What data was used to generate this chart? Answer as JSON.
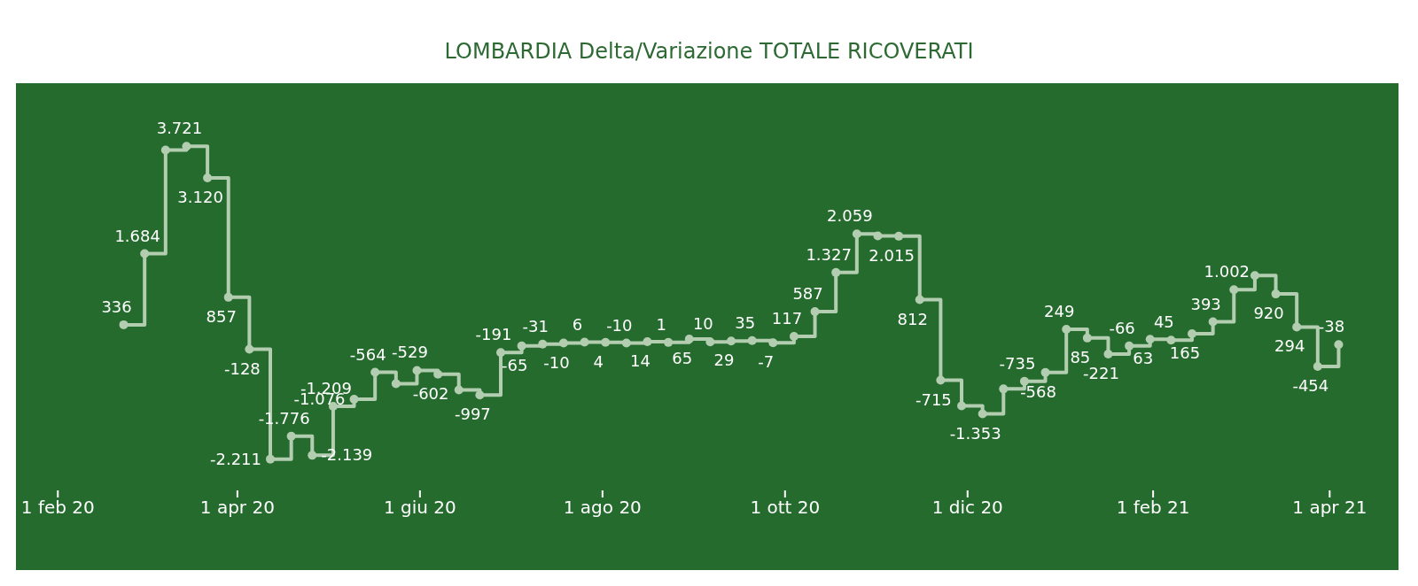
{
  "chart_data": {
    "type": "step",
    "title": "LOMBARDIA Delta/Variazione TOTALE RICOVERATI",
    "x": [
      "2020-02-23",
      "2020-03-01",
      "2020-03-08",
      "2020-03-15",
      "2020-03-22",
      "2020-03-29",
      "2020-04-05",
      "2020-04-12",
      "2020-04-19",
      "2020-04-26",
      "2020-05-03",
      "2020-05-10",
      "2020-05-17",
      "2020-05-24",
      "2020-05-31",
      "2020-06-07",
      "2020-06-14",
      "2020-06-21",
      "2020-06-28",
      "2020-07-05",
      "2020-07-12",
      "2020-07-19",
      "2020-07-26",
      "2020-08-02",
      "2020-08-09",
      "2020-08-16",
      "2020-08-23",
      "2020-08-30",
      "2020-09-06",
      "2020-09-13",
      "2020-09-20",
      "2020-09-27",
      "2020-10-04",
      "2020-10-11",
      "2020-10-18",
      "2020-10-25",
      "2020-11-01",
      "2020-11-08",
      "2020-11-15",
      "2020-11-22",
      "2020-11-29",
      "2020-12-06",
      "2020-12-13",
      "2020-12-20",
      "2020-12-27",
      "2021-01-03",
      "2021-01-10",
      "2021-01-17",
      "2021-01-24",
      "2021-01-31",
      "2021-02-07",
      "2021-02-14",
      "2021-02-21",
      "2021-02-28",
      "2021-03-07",
      "2021-03-14",
      "2021-03-21",
      "2021-03-28",
      "2021-04-04"
    ],
    "series": [
      {
        "color": "#b3cdb0",
        "values": [
          336,
          1684,
          3650,
          3721,
          3120,
          857,
          -128,
          -2211,
          -1776,
          -2139,
          -1209,
          -1076,
          -564,
          -780,
          -529,
          -602,
          -900,
          -997,
          -191,
          -65,
          -31,
          -10,
          6,
          4,
          -10,
          14,
          1,
          65,
          10,
          29,
          35,
          -7,
          117,
          587,
          1327,
          2059,
          2020,
          2015,
          812,
          -715,
          -1200,
          -1353,
          -880,
          -735,
          -568,
          249,
          85,
          -221,
          -66,
          63,
          45,
          165,
          393,
          1002,
          1270,
          920,
          294,
          -454,
          -38
        ],
        "value_labels": [
          "336",
          "1.684",
          null,
          "3.721",
          "3.120",
          "857",
          "-128",
          "-2.211",
          "-1.776",
          "-2.139",
          "-1.209",
          "-1.076",
          "-564",
          null,
          "-529",
          "-602",
          null,
          "-997",
          "-191",
          "-65",
          "-31",
          "-10",
          "6",
          "4",
          "-10",
          "14",
          "1",
          "65",
          "10",
          "29",
          "35",
          "-7",
          "117",
          "587",
          "1.327",
          "2.059",
          null,
          "2.015",
          "812",
          "-715",
          null,
          "-1.353",
          null,
          "-735",
          "-568",
          "249",
          "85",
          "-221",
          "-66",
          "63",
          "45",
          "165",
          "393",
          "1.002",
          null,
          "920",
          "294",
          "-454",
          "-38"
        ]
      }
    ],
    "xlim": [
      "2020-01-18",
      "2021-04-24"
    ],
    "xticks": [
      {
        "value": "2020-02-01",
        "label": "1 feb 20"
      },
      {
        "value": "2020-04-01",
        "label": "1 apr 20"
      },
      {
        "value": "2020-06-01",
        "label": "1 giu 20"
      },
      {
        "value": "2020-08-01",
        "label": "1 ago 20"
      },
      {
        "value": "2020-10-01",
        "label": "1 ott 20"
      },
      {
        "value": "2020-12-01",
        "label": "1 dic 20"
      },
      {
        "value": "2021-02-01",
        "label": "1 feb 21"
      },
      {
        "value": "2021-04-01",
        "label": "1 apr 21"
      }
    ],
    "tick_labels": "x",
    "marker": "circle",
    "line_style": "solid"
  }
}
